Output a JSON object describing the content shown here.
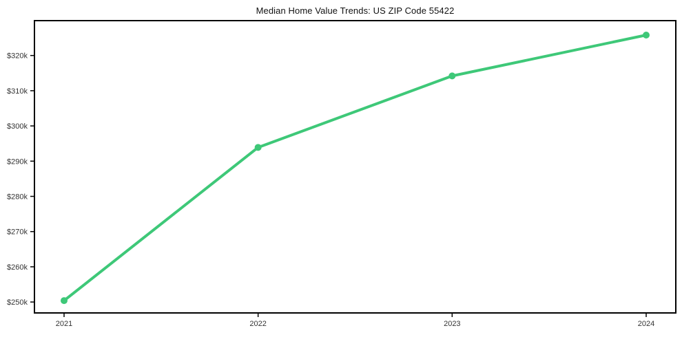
{
  "page": {
    "background": "#ffffff"
  },
  "chart_data": {
    "type": "line",
    "title": "Median Home Value Trends: US ZIP Code 55422",
    "categories": [
      "2021",
      "2022",
      "2023",
      "2024"
    ],
    "series": [
      {
        "name": "Median Home Value",
        "values": [
          250400,
          293900,
          314200,
          325800
        ],
        "color": "#3ec878",
        "marker": "circle"
      }
    ],
    "xlabel": "",
    "ylabel": "",
    "y_ticks": [
      {
        "value": 250000,
        "label": "$250k"
      },
      {
        "value": 260000,
        "label": "$260k"
      },
      {
        "value": 270000,
        "label": "$270k"
      },
      {
        "value": 280000,
        "label": "$280k"
      },
      {
        "value": 290000,
        "label": "$290k"
      },
      {
        "value": 300000,
        "label": "$300k"
      },
      {
        "value": 310000,
        "label": "$310k"
      },
      {
        "value": 320000,
        "label": "$320k"
      }
    ],
    "ylim": [
      246900,
      329900
    ],
    "grid": false,
    "legend": false,
    "axis_color": "#000000",
    "tick_label_color": "#333333",
    "line_width": 4,
    "marker_radius": 5
  }
}
